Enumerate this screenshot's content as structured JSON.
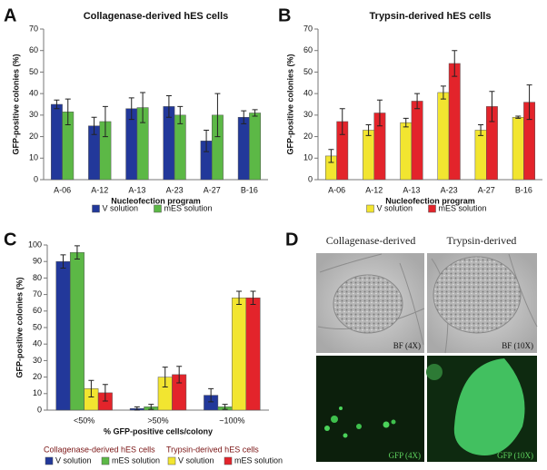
{
  "chart_data": [
    {
      "type": "bar",
      "panel": "A",
      "title": "Collagenase-derived hES cells",
      "xlabel": "Nucleofection program",
      "ylabel": "GFP-positive colonies (%)",
      "categories": [
        "A-06",
        "A-12",
        "A-13",
        "A-23",
        "A-27",
        "B-16"
      ],
      "ylim": [
        0,
        70
      ],
      "yticks": [
        0,
        10,
        20,
        30,
        40,
        50,
        60,
        70
      ],
      "series": [
        {
          "name": "V solution",
          "color": "#22389a",
          "values": [
            35,
            25,
            33,
            34,
            18,
            29
          ],
          "errors": [
            2,
            4,
            5,
            5,
            5,
            3
          ]
        },
        {
          "name": "mES solution",
          "color": "#5cb846",
          "values": [
            31.5,
            27,
            33.5,
            30,
            30,
            31
          ],
          "errors": [
            6,
            7,
            7,
            4,
            10,
            1.5
          ]
        }
      ]
    },
    {
      "type": "bar",
      "panel": "B",
      "title": "Trypsin-derived hES cells",
      "xlabel": "Nucleofection program",
      "ylabel": "GFP-positive colonies (%)",
      "categories": [
        "A-06",
        "A-12",
        "A-13",
        "A-23",
        "A-27",
        "B-16"
      ],
      "ylim": [
        0,
        70
      ],
      "yticks": [
        0,
        10,
        20,
        30,
        40,
        50,
        60,
        70
      ],
      "series": [
        {
          "name": "V solution",
          "color": "#f2e530",
          "values": [
            11,
            23,
            26.5,
            40.5,
            23,
            29
          ],
          "errors": [
            3,
            2.5,
            2,
            3,
            2.5,
            0.5
          ]
        },
        {
          "name": "mES solution",
          "color": "#e3242b",
          "values": [
            27,
            31,
            36.5,
            54,
            34,
            36
          ],
          "errors": [
            6,
            6,
            3.5,
            6,
            7,
            8
          ]
        }
      ]
    },
    {
      "type": "bar",
      "panel": "C",
      "xlabel": "% GFP-positive cells/colony",
      "ylabel": "GFP-positive colonies (%)",
      "categories": [
        "<50%",
        ">50%",
        "~100%"
      ],
      "ylim": [
        0,
        100
      ],
      "yticks": [
        0,
        10,
        20,
        30,
        40,
        50,
        60,
        70,
        80,
        90,
        100
      ],
      "series": [
        {
          "name": "V solution",
          "group": "Collagenase-derived hES cells",
          "color": "#22389a",
          "values": [
            90,
            1,
            9
          ],
          "errors": [
            4,
            1,
            4
          ]
        },
        {
          "name": "mES solution",
          "group": "Collagenase-derived hES cells",
          "color": "#5cb846",
          "values": [
            95.5,
            2,
            2
          ],
          "errors": [
            4,
            1.5,
            1.5
          ]
        },
        {
          "name": "V solution",
          "group": "Trypsin-derived hES cells",
          "color": "#f2e530",
          "values": [
            13,
            20,
            68
          ],
          "errors": [
            5,
            6,
            4
          ]
        },
        {
          "name": "mES solution",
          "group": "Trypsin-derived hES cells",
          "color": "#e3242b",
          "values": [
            10.5,
            21.5,
            68
          ],
          "errors": [
            5,
            5,
            4
          ]
        }
      ]
    }
  ],
  "image_panel": {
    "panel": "D",
    "columns": [
      "Collagenase-derived",
      "Trypsin-derived"
    ],
    "labels": [
      [
        "BF (4X)",
        "BF (10X)"
      ],
      [
        "GFP (4X)",
        "GFP (10X)"
      ]
    ]
  }
}
